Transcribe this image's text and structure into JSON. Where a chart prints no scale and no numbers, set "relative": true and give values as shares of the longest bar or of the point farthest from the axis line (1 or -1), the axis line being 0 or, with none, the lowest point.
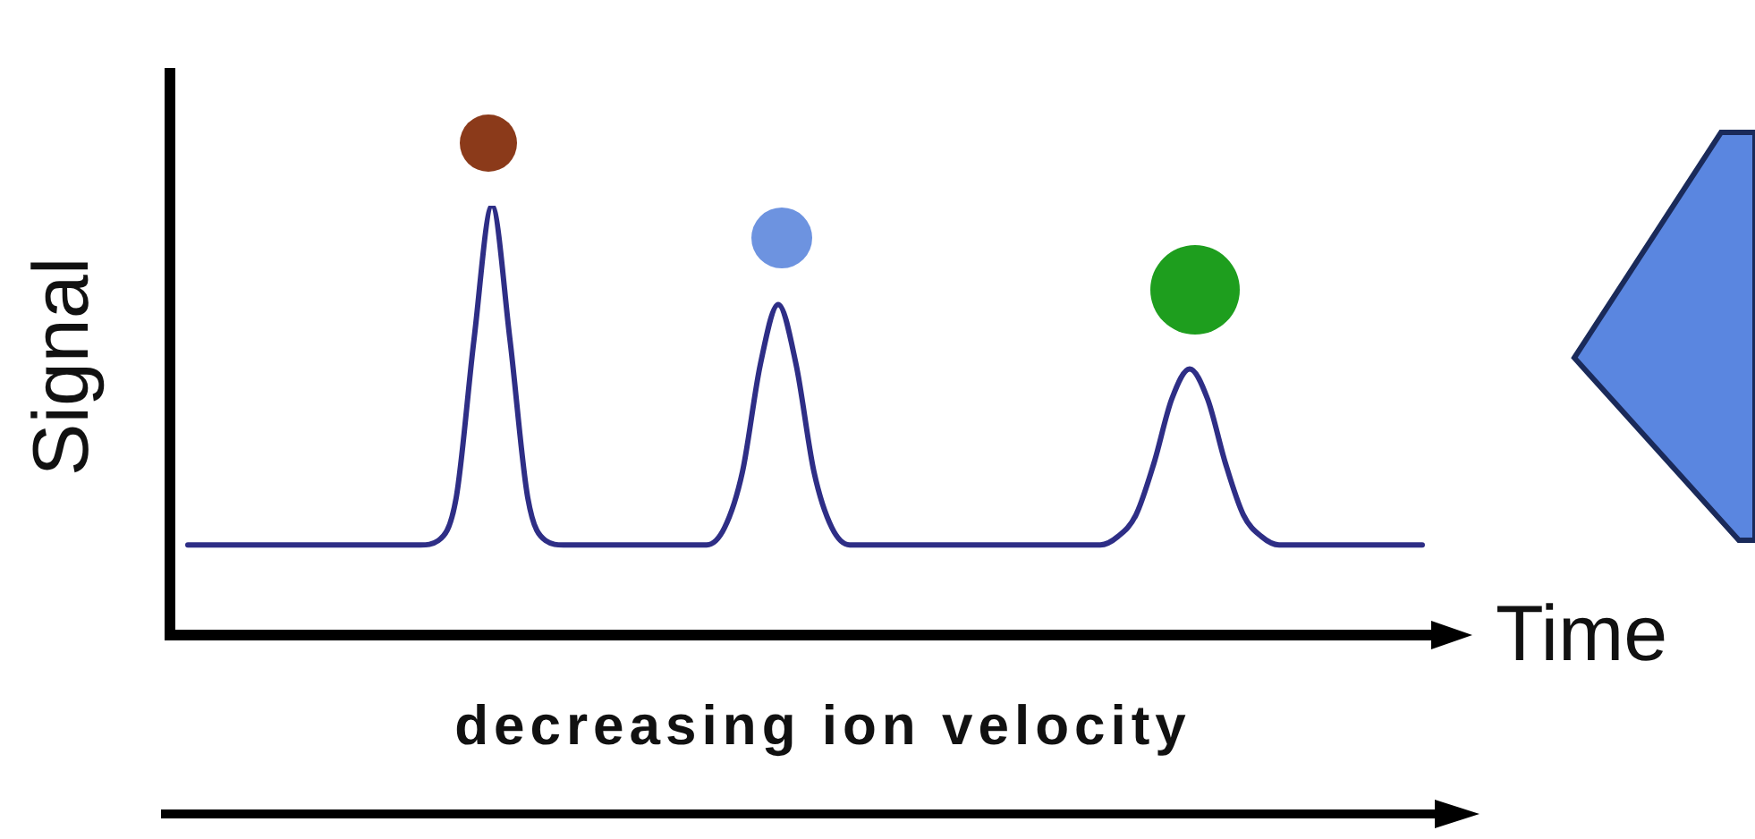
{
  "chart_data": {
    "type": "line",
    "relative": true,
    "xlabel": "Time",
    "ylabel": "Signal",
    "annotations": [
      "decreasing ion velocity"
    ],
    "categories": [
      null,
      null,
      null,
      null,
      null,
      null,
      null,
      null,
      null,
      null,
      null,
      null,
      null,
      null,
      null,
      null,
      null,
      null,
      null,
      null,
      null,
      null,
      null,
      null,
      null,
      null,
      null,
      null,
      null,
      null,
      null,
      null,
      null,
      null,
      null,
      null,
      null,
      null,
      null,
      null,
      null,
      null,
      null,
      null,
      null,
      null,
      null,
      null,
      null,
      null,
      null,
      null,
      null,
      null,
      null,
      null,
      null,
      null,
      null,
      null,
      null,
      null,
      null,
      null,
      null,
      null,
      null,
      null,
      null,
      null
    ],
    "series": [
      {
        "color": "#2e2e86",
        "values": [
          0.21,
          0.21,
          0.21,
          0.21,
          0.21,
          0.21,
          0.21,
          0.21,
          0.21,
          0.21,
          0.21,
          0.21,
          0.21,
          0.21,
          0.22,
          0.32,
          0.69,
          1,
          0.69,
          0.32,
          0.22,
          0.21,
          0.21,
          0.21,
          0.21,
          0.21,
          0.21,
          0.21,
          0.21,
          0.21,
          0.25,
          0.38,
          0.63,
          0.77,
          0.63,
          0.38,
          0.25,
          0.21,
          0.21,
          0.21,
          0.21,
          0.21,
          0.21,
          0.21,
          0.21,
          0.21,
          0.21,
          0.21,
          0.21,
          0.21,
          0.21,
          0.21,
          0.23,
          0.28,
          0.4,
          0.55,
          0.62,
          0.55,
          0.4,
          0.28,
          0.23,
          0.21,
          0.21,
          0.21,
          0.21,
          0.21,
          0.21,
          0.21,
          0.21,
          0.21
        ]
      }
    ],
    "marker": "none",
    "legend": false
  }
}
